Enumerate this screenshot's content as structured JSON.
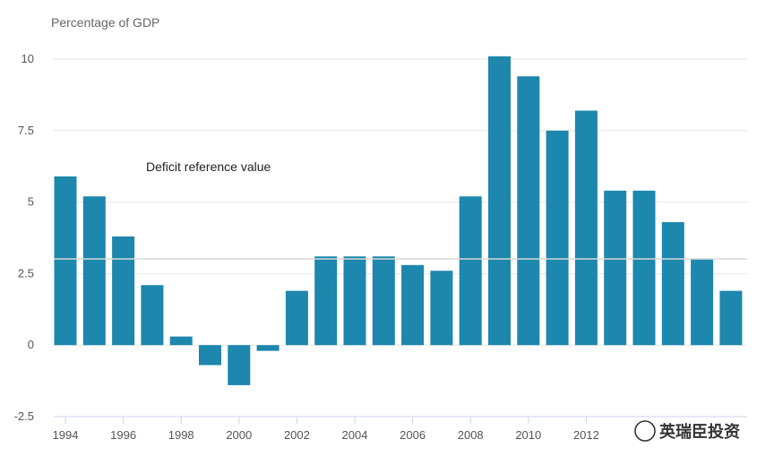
{
  "chart_data": {
    "type": "bar",
    "ylabel": "Percentage of GDP",
    "ylim": [
      -2.5,
      10
    ],
    "yticks": [
      -2.5,
      0,
      2.5,
      5,
      7.5,
      10
    ],
    "ytick_labels": [
      "-2.5",
      "0",
      "2.5",
      "5",
      "7.5",
      "10"
    ],
    "categories": [
      "1994",
      "1995",
      "1996",
      "1997",
      "1998",
      "1999",
      "2000",
      "2001",
      "2002",
      "2003",
      "2004",
      "2005",
      "2006",
      "2007",
      "2008",
      "2009",
      "2010",
      "2011",
      "2012",
      "2013",
      "2014",
      "2015",
      "2016",
      "2017"
    ],
    "xtick_labels": [
      "1994",
      "1996",
      "1998",
      "2000",
      "2002",
      "2004",
      "2006",
      "2008",
      "2010",
      "2012"
    ],
    "values": [
      5.9,
      5.2,
      3.8,
      2.1,
      0.3,
      -0.7,
      -1.4,
      -0.2,
      1.9,
      3.1,
      3.1,
      3.1,
      2.8,
      2.6,
      5.2,
      10.1,
      9.4,
      7.5,
      8.2,
      5.4,
      5.4,
      4.3,
      3.0,
      1.9
    ],
    "annotation": "Deficit reference value",
    "grid": true,
    "bar_color": "#1d87ad"
  },
  "watermark": "英瑞臣投资"
}
